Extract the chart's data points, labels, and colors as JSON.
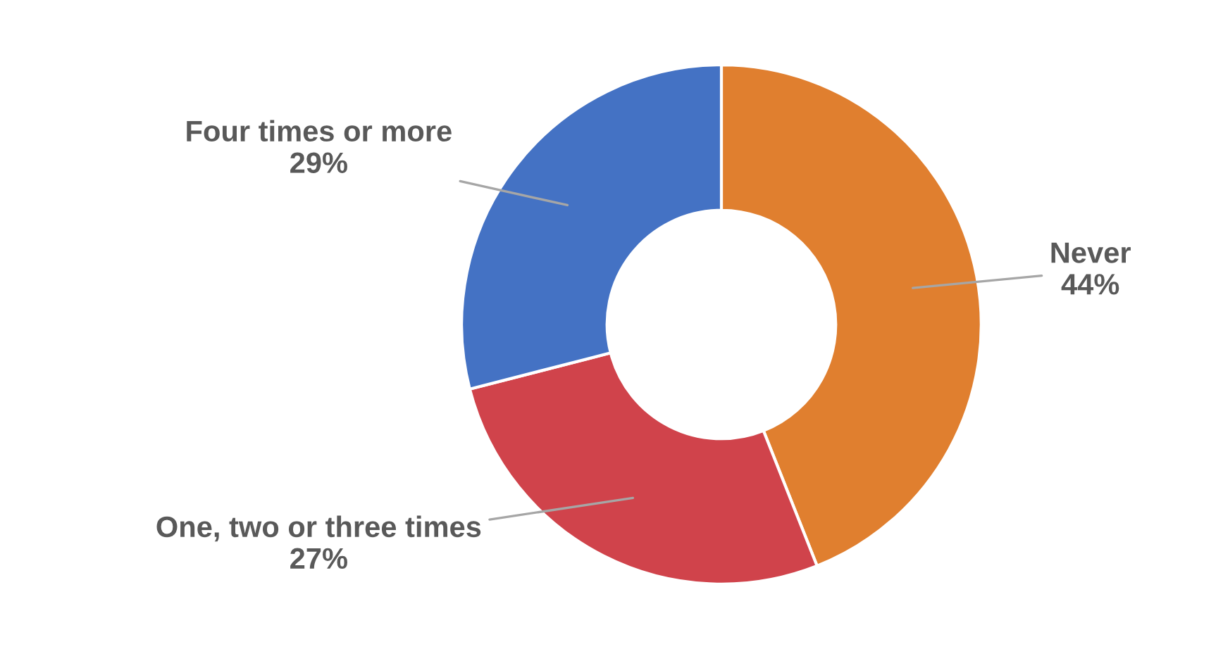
{
  "chart_data": {
    "type": "donut",
    "categories": [
      "Never",
      "One, two or three times",
      "Four times or more"
    ],
    "values": [
      44,
      27,
      29
    ],
    "value_labels": [
      "44%",
      "27%",
      "29%"
    ],
    "colors": [
      "#e07f2f",
      "#d0434b",
      "#4472c4"
    ]
  }
}
